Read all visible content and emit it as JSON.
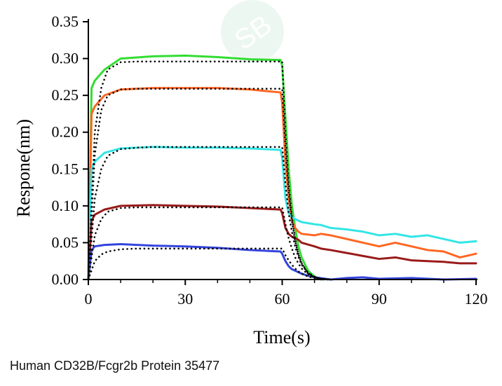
{
  "caption": "Human CD32B/Fcgr2b Protein 35477",
  "chart_data": {
    "type": "line",
    "xlabel": "Time(s)",
    "ylabel": "Respone(nm)",
    "xlim": [
      0,
      120
    ],
    "ylim": [
      0,
      0.35
    ],
    "xticks": [
      "0",
      "30",
      "60",
      "90",
      "120"
    ],
    "yticks": [
      "0.00",
      "0.05",
      "0.10",
      "0.15",
      "0.20",
      "0.25",
      "0.30",
      "0.35"
    ],
    "grid": false,
    "legend": "none",
    "series": [
      {
        "color": "#33dd33",
        "style": "solid",
        "x": [
          0,
          1,
          2,
          5,
          10,
          20,
          30,
          40,
          50,
          59.5,
          60,
          61,
          62,
          63,
          64,
          65,
          66,
          68,
          70,
          72
        ],
        "y": [
          0.0,
          0.26,
          0.27,
          0.285,
          0.3,
          0.303,
          0.304,
          0.302,
          0.299,
          0.298,
          0.29,
          0.22,
          0.15,
          0.1,
          0.07,
          0.045,
          0.03,
          0.012,
          0.004,
          0.0
        ]
      },
      {
        "color": "#ff6622",
        "style": "solid",
        "x": [
          0,
          1,
          2,
          5,
          10,
          20,
          30,
          40,
          50,
          59.5,
          60,
          61,
          62,
          63,
          64,
          65,
          66,
          70,
          72,
          75,
          80,
          85,
          90,
          95,
          100,
          105,
          110,
          115,
          120
        ],
        "y": [
          0.0,
          0.225,
          0.235,
          0.25,
          0.258,
          0.26,
          0.26,
          0.26,
          0.258,
          0.254,
          0.24,
          0.16,
          0.11,
          0.08,
          0.07,
          0.065,
          0.062,
          0.06,
          0.062,
          0.06,
          0.055,
          0.05,
          0.045,
          0.05,
          0.045,
          0.04,
          0.038,
          0.03,
          0.035
        ]
      },
      {
        "color": "#33e5e5",
        "style": "solid",
        "x": [
          0,
          1,
          2,
          5,
          10,
          20,
          30,
          40,
          50,
          59.5,
          60,
          61,
          62,
          63,
          64,
          65,
          66,
          70,
          72,
          75,
          80,
          85,
          90,
          95,
          100,
          105,
          110,
          115,
          120
        ],
        "y": [
          0.0,
          0.15,
          0.16,
          0.172,
          0.178,
          0.18,
          0.179,
          0.179,
          0.178,
          0.176,
          0.165,
          0.11,
          0.09,
          0.085,
          0.082,
          0.08,
          0.078,
          0.075,
          0.074,
          0.07,
          0.068,
          0.065,
          0.06,
          0.062,
          0.058,
          0.06,
          0.055,
          0.05,
          0.052
        ]
      },
      {
        "color": "#9a1a1a",
        "style": "solid",
        "x": [
          0,
          1,
          2,
          5,
          10,
          20,
          30,
          40,
          50,
          59.5,
          60,
          61,
          62,
          63,
          64,
          65,
          66,
          70,
          72,
          75,
          80,
          85,
          90,
          95,
          100,
          105,
          110,
          115,
          120
        ],
        "y": [
          0.0,
          0.08,
          0.088,
          0.095,
          0.1,
          0.101,
          0.1,
          0.099,
          0.097,
          0.095,
          0.09,
          0.07,
          0.062,
          0.058,
          0.056,
          0.054,
          0.05,
          0.045,
          0.042,
          0.04,
          0.036,
          0.032,
          0.028,
          0.03,
          0.026,
          0.025,
          0.024,
          0.022,
          0.022
        ]
      },
      {
        "color": "#3344dd",
        "style": "solid",
        "x": [
          0,
          1,
          2,
          5,
          10,
          20,
          30,
          40,
          50,
          59.5,
          60,
          61,
          62,
          63,
          64,
          65,
          66,
          68,
          70,
          75,
          80,
          85,
          90,
          100,
          110,
          120
        ],
        "y": [
          0.0,
          0.04,
          0.045,
          0.047,
          0.048,
          0.046,
          0.045,
          0.043,
          0.04,
          0.038,
          0.035,
          0.025,
          0.018,
          0.014,
          0.012,
          0.01,
          0.008,
          0.005,
          0.003,
          0.0,
          0.002,
          0.003,
          0.001,
          0.002,
          0.0,
          0.001
        ]
      },
      {
        "color": "#000000",
        "style": "dotted",
        "x": [
          0,
          2,
          4,
          6,
          10,
          15,
          20,
          40,
          60,
          61,
          62,
          63,
          64,
          65,
          66,
          68,
          70,
          72,
          75
        ],
        "y": [
          0.0,
          0.2,
          0.26,
          0.285,
          0.295,
          0.296,
          0.296,
          0.296,
          0.296,
          0.2,
          0.13,
          0.085,
          0.055,
          0.035,
          0.022,
          0.008,
          0.003,
          0.001,
          0.0
        ]
      },
      {
        "color": "#000000",
        "style": "dotted",
        "x": [
          0,
          2,
          4,
          6,
          10,
          15,
          20,
          40,
          60,
          61,
          62,
          63,
          64,
          65,
          66,
          68,
          70,
          72,
          75
        ],
        "y": [
          0.0,
          0.17,
          0.23,
          0.25,
          0.258,
          0.259,
          0.259,
          0.259,
          0.259,
          0.18,
          0.12,
          0.08,
          0.052,
          0.034,
          0.022,
          0.009,
          0.003,
          0.001,
          0.0
        ]
      },
      {
        "color": "#000000",
        "style": "dotted",
        "x": [
          0,
          2,
          4,
          6,
          10,
          15,
          20,
          40,
          60,
          61,
          62,
          63,
          64,
          65,
          66,
          68,
          70,
          72,
          75
        ],
        "y": [
          0.0,
          0.11,
          0.15,
          0.168,
          0.177,
          0.179,
          0.18,
          0.18,
          0.18,
          0.13,
          0.09,
          0.065,
          0.045,
          0.031,
          0.02,
          0.009,
          0.004,
          0.001,
          0.0
        ]
      },
      {
        "color": "#000000",
        "style": "dotted",
        "x": [
          0,
          2,
          4,
          6,
          10,
          15,
          20,
          40,
          60,
          61,
          62,
          63,
          64,
          65,
          66,
          68,
          70,
          72,
          75
        ],
        "y": [
          0.0,
          0.06,
          0.082,
          0.092,
          0.097,
          0.098,
          0.098,
          0.098,
          0.098,
          0.075,
          0.056,
          0.042,
          0.03,
          0.022,
          0.015,
          0.007,
          0.003,
          0.001,
          0.0
        ]
      },
      {
        "color": "#000000",
        "style": "dotted",
        "x": [
          0,
          2,
          4,
          6,
          10,
          15,
          20,
          40,
          60,
          61,
          62,
          63,
          64,
          65,
          66,
          68,
          70,
          72,
          75
        ],
        "y": [
          0.0,
          0.025,
          0.034,
          0.038,
          0.041,
          0.042,
          0.042,
          0.042,
          0.042,
          0.033,
          0.026,
          0.02,
          0.015,
          0.011,
          0.008,
          0.004,
          0.002,
          0.0,
          0.0
        ]
      }
    ]
  }
}
